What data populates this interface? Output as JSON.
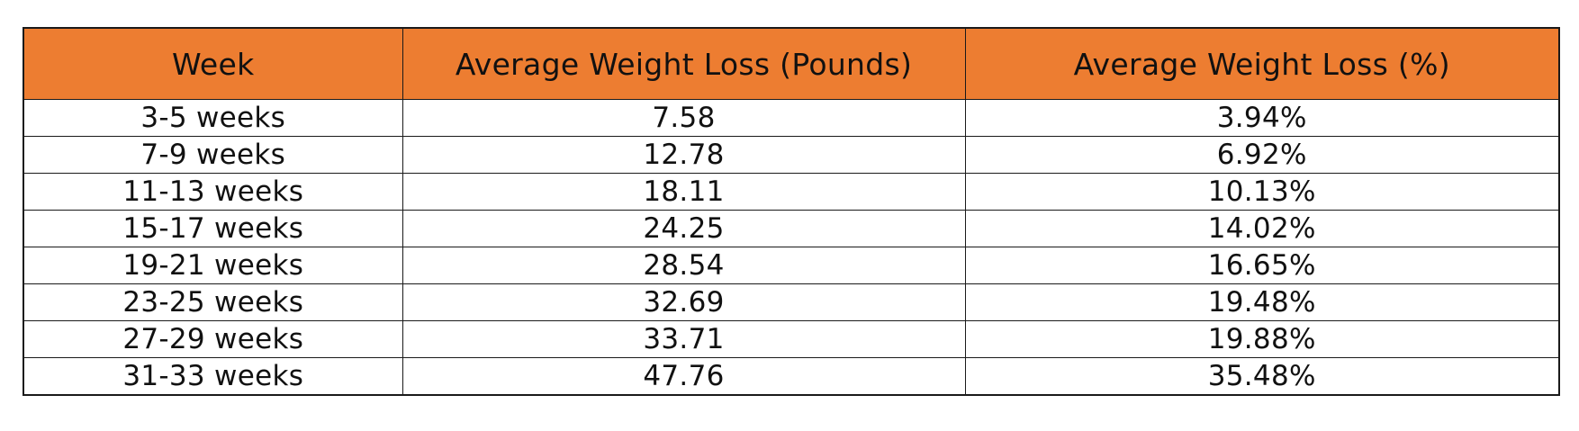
{
  "table": {
    "headers": [
      "Week",
      "Average Weight Loss (Pounds)",
      "Average Weight Loss (%)"
    ],
    "header_color": "#ED7D31",
    "rows": [
      [
        "3-5 weeks",
        "7.58",
        "3.94%"
      ],
      [
        "7-9 weeks",
        "12.78",
        "6.92%"
      ],
      [
        "11-13 weeks",
        "18.11",
        "10.13%"
      ],
      [
        "15-17 weeks",
        "24.25",
        "14.02%"
      ],
      [
        "19-21 weeks",
        "28.54",
        "16.65%"
      ],
      [
        "23-25 weeks",
        "32.69",
        "19.48%"
      ],
      [
        "27-29 weeks",
        "33.71",
        "19.88%"
      ],
      [
        "31-33 weeks",
        "47.76",
        "35.48%"
      ]
    ]
  }
}
